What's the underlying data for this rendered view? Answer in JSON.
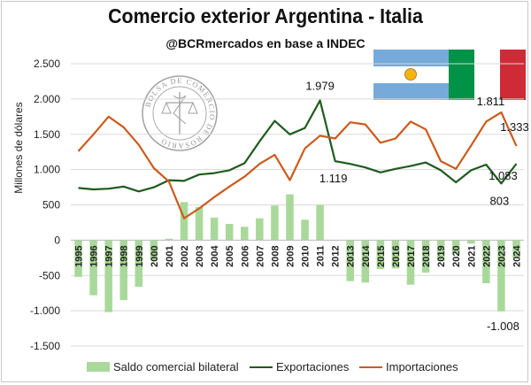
{
  "title": "Comercio exterior Argentina - Italia",
  "subtitle": "@BCRmercados en base a INDEC",
  "seal_text": "BOLSA DE COMERCIO DE ROSARIO",
  "colors": {
    "exports": "#1e5b1e",
    "imports": "#cc5a1c",
    "balance": "#a9d99a",
    "grid": "#d9d9d9",
    "flag_ar_blue": "#75aadb",
    "flag_ar_sun": "#f6b40e",
    "flag_it_green": "#009246",
    "flag_it_red": "#ce2b37"
  },
  "chart_data": {
    "type": "bar+line",
    "title": "Comercio exterior Argentina - Italia",
    "ylabel": "Millones de dólares",
    "ylim": [
      -1500,
      2500
    ],
    "yticks": [
      2500,
      2000,
      1500,
      1000,
      500,
      0,
      -500,
      -1000,
      -1500
    ],
    "ytick_labels": [
      "2.500",
      "2.000",
      "1.500",
      "1.000",
      "500",
      "0",
      "-500",
      "-1.000",
      "-1.500"
    ],
    "grid": true,
    "legend_position": "bottom",
    "categories": [
      "1995",
      "1996",
      "1997",
      "1998",
      "1999",
      "2000",
      "2001",
      "2002",
      "2003",
      "2004",
      "2005",
      "2006",
      "2007",
      "2008",
      "2009",
      "2010",
      "2011",
      "2012",
      "2013",
      "2014",
      "2015",
      "2016",
      "2017",
      "2018",
      "2019",
      "2020",
      "2021",
      "2022",
      "2023",
      "2024"
    ],
    "series": [
      {
        "name": "Saldo comercial bilateral",
        "kind": "bar",
        "values": [
          -520,
          -780,
          -1020,
          -850,
          -660,
          -280,
          20,
          540,
          470,
          320,
          230,
          190,
          310,
          490,
          650,
          290,
          500,
          -10,
          -580,
          -600,
          -410,
          -400,
          -630,
          -460,
          -290,
          -190,
          -50,
          -610,
          -1008,
          -250
        ]
      },
      {
        "name": "Exportaciones",
        "kind": "line",
        "values": [
          740,
          720,
          730,
          760,
          690,
          750,
          850,
          840,
          930,
          950,
          990,
          1090,
          1400,
          1690,
          1500,
          1590,
          1979,
          1119,
          1080,
          1030,
          960,
          1010,
          1050,
          1100,
          990,
          820,
          990,
          1070,
          803,
          1083
        ]
      },
      {
        "name": "Importaciones",
        "kind": "line",
        "values": [
          1260,
          1500,
          1750,
          1600,
          1350,
          1020,
          830,
          310,
          450,
          610,
          760,
          900,
          1080,
          1210,
          850,
          1300,
          1480,
          1440,
          1670,
          1640,
          1380,
          1440,
          1680,
          1570,
          1120,
          1010,
          1340,
          1680,
          1811,
          1333
        ]
      }
    ],
    "annotations": [
      {
        "text": "1.979",
        "series": "Exportaciones",
        "x": "2011",
        "y": 1979
      },
      {
        "text": "1.119",
        "series": "Exportaciones",
        "x": "2012",
        "y": 1119
      },
      {
        "text": "1.811",
        "series": "Importaciones",
        "x": "2023",
        "y": 1811
      },
      {
        "text": "1.333",
        "series": "Importaciones",
        "x": "2024",
        "y": 1333
      },
      {
        "text": "1.083",
        "series": "Exportaciones",
        "x": "2024",
        "y": 1083
      },
      {
        "text": "803",
        "series": "Exportaciones",
        "x": "2023",
        "y": 803
      },
      {
        "text": "-1.008",
        "series": "Saldo comercial bilateral",
        "x": "2023",
        "y": -1008
      }
    ]
  }
}
